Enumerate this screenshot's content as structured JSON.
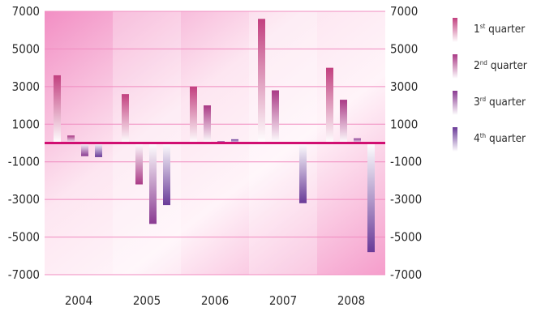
{
  "chart_data": {
    "type": "bar",
    "title": "",
    "xlabel": "",
    "ylabel": "",
    "ylim": [
      -7000,
      7000
    ],
    "yticks": [
      "7000",
      "5000",
      "3000",
      "1000",
      "-1000",
      "-3000",
      "-5000",
      "-7000"
    ],
    "yticks_right": [
      "7000",
      "5000",
      "3000",
      "1000",
      "-1000",
      "-3000",
      "-5000",
      "-7000"
    ],
    "categories": [
      "2004",
      "2005",
      "2006",
      "2007",
      "2008"
    ],
    "series": [
      {
        "name": "1st quarter",
        "ordinal": "1",
        "suffix": "st",
        "word": "quarter",
        "color": "#c2407f",
        "values": [
          3600,
          2600,
          3000,
          6600,
          4000
        ]
      },
      {
        "name": "2nd quarter",
        "ordinal": "2",
        "suffix": "nd",
        "word": "quarter",
        "color": "#aa3a86",
        "values": [
          400,
          -2200,
          2000,
          2800,
          2300
        ]
      },
      {
        "name": "3rd quarter",
        "ordinal": "3",
        "suffix": "rd",
        "word": "quarter",
        "color": "#8a3b92",
        "values": [
          -700,
          -4300,
          100,
          50,
          250
        ]
      },
      {
        "name": "4th quarter",
        "ordinal": "4",
        "suffix": "th",
        "word": "quarter",
        "color": "#6a3a98",
        "values": [
          -750,
          -3300,
          200,
          -3200,
          -5800
        ]
      }
    ],
    "grid": true,
    "legend": "right"
  }
}
